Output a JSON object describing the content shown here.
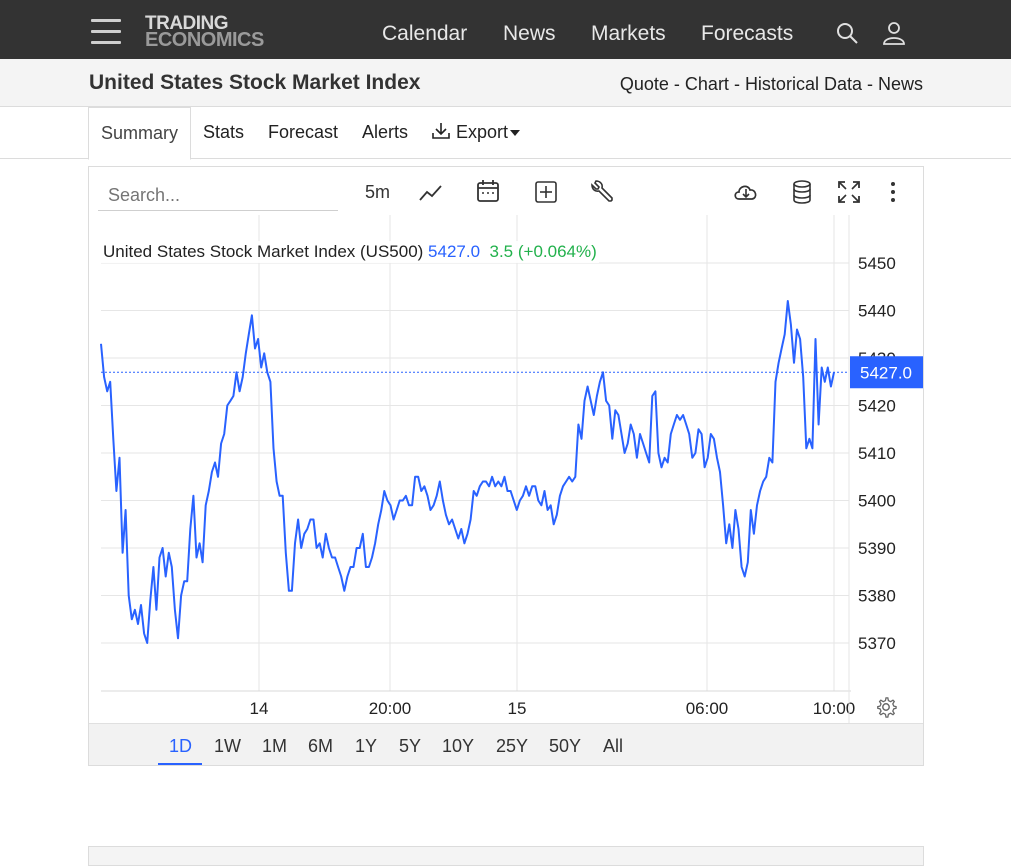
{
  "header": {
    "logo_line1": "TRADING",
    "logo_line2": "ECONOMICS",
    "nav": [
      "Calendar",
      "News",
      "Markets",
      "Forecasts"
    ],
    "icons": [
      "menu-icon",
      "search-icon",
      "user-icon"
    ]
  },
  "titlebar": {
    "title": "United States Stock Market Index",
    "links": [
      "Quote",
      "Chart",
      "Historical Data",
      "News"
    ],
    "separator": " - "
  },
  "tabs": {
    "summary": "Summary",
    "stats": "Stats",
    "forecast": "Forecast",
    "alerts": "Alerts",
    "export": "Export"
  },
  "toolbar": {
    "search_placeholder": "Search...",
    "interval": "5m",
    "icons": [
      "line-chart-icon",
      "calendar-icon",
      "add-indicator-icon",
      "wrench-icon",
      "cloud-download-icon",
      "database-icon",
      "fullscreen-icon",
      "more-vertical-icon",
      "settings-gear-icon"
    ]
  },
  "legend": {
    "name": "United States Stock Market Index (US500)",
    "price": "5427.0",
    "change": "3.5 (+0.064%)"
  },
  "ranges": [
    "1D",
    "1W",
    "1M",
    "6M",
    "1Y",
    "5Y",
    "10Y",
    "25Y",
    "50Y",
    "All"
  ],
  "active_range": "1D",
  "colors": {
    "line": "#2962ff",
    "positive": "#22b14c",
    "topbar": "#333333",
    "price_tag": "#2962ff"
  },
  "chart_data": {
    "type": "line",
    "series": [
      {
        "name": "US500",
        "values": [
          5433,
          5426,
          5423,
          5425,
          5413,
          5402,
          5409,
          5389,
          5398,
          5380,
          5375,
          5377,
          5374,
          5378,
          5372,
          5370,
          5379,
          5386,
          5377,
          5388,
          5390,
          5384,
          5389,
          5386,
          5377,
          5371,
          5380,
          5383,
          5383,
          5394,
          5401,
          5388,
          5391,
          5387,
          5399,
          5402,
          5406,
          5408,
          5405,
          5412,
          5414,
          5420,
          5421,
          5422,
          5427,
          5423,
          5426,
          5431,
          5435,
          5439,
          5432,
          5434,
          5428,
          5431,
          5427,
          5425,
          5411,
          5404,
          5401,
          5401,
          5389,
          5381,
          5381,
          5391,
          5396,
          5390,
          5393,
          5394,
          5396,
          5396,
          5390,
          5391,
          5388,
          5393,
          5390,
          5388,
          5388,
          5386,
          5384,
          5381,
          5384,
          5386,
          5386,
          5390,
          5390,
          5393,
          5386,
          5386,
          5388,
          5391,
          5395,
          5398,
          5402,
          5400,
          5399,
          5396,
          5398,
          5400,
          5400,
          5401,
          5399,
          5399,
          5405,
          5405,
          5402,
          5403,
          5401,
          5398,
          5399,
          5401,
          5404,
          5400,
          5397,
          5395,
          5396,
          5394,
          5392,
          5394,
          5391,
          5393,
          5396,
          5402,
          5401,
          5403,
          5404,
          5404,
          5403,
          5405,
          5403,
          5404,
          5403,
          5405,
          5402,
          5402,
          5400,
          5398,
          5400,
          5401,
          5403,
          5401,
          5403,
          5403,
          5400,
          5399,
          5402,
          5398,
          5399,
          5395,
          5397,
          5401,
          5403,
          5404,
          5405,
          5404,
          5405,
          5416,
          5413,
          5421,
          5424,
          5421,
          5418,
          5422,
          5425,
          5427,
          5421,
          5420,
          5413,
          5419,
          5418,
          5414,
          5410,
          5412,
          5416,
          5414,
          5409,
          5414,
          5412,
          5410,
          5408,
          5422,
          5423,
          5410,
          5407,
          5409,
          5408,
          5414,
          5416,
          5418,
          5417,
          5418,
          5416,
          5414,
          5409,
          5410,
          5415,
          5414,
          5407,
          5409,
          5414,
          5413,
          5409,
          5406,
          5399,
          5391,
          5395,
          5390,
          5398,
          5394,
          5386,
          5384,
          5387,
          5398,
          5393,
          5399,
          5402,
          5404,
          5405,
          5409,
          5408,
          5425,
          5429,
          5432,
          5435,
          5442,
          5437,
          5429,
          5436,
          5434,
          5426,
          5411,
          5413,
          5411,
          5434,
          5416,
          5428,
          5425,
          5428,
          5424,
          5427
        ]
      }
    ],
    "x_tick_labels": [
      "14",
      "20:00",
      "15",
      "06:00",
      "10:00"
    ],
    "y_tick_labels": [
      "5370",
      "5380",
      "5390",
      "5400",
      "5410",
      "5420",
      "5430",
      "5440",
      "5450"
    ],
    "ylim": [
      5360,
      5460
    ],
    "last_value": "5427.0",
    "grid": true
  }
}
